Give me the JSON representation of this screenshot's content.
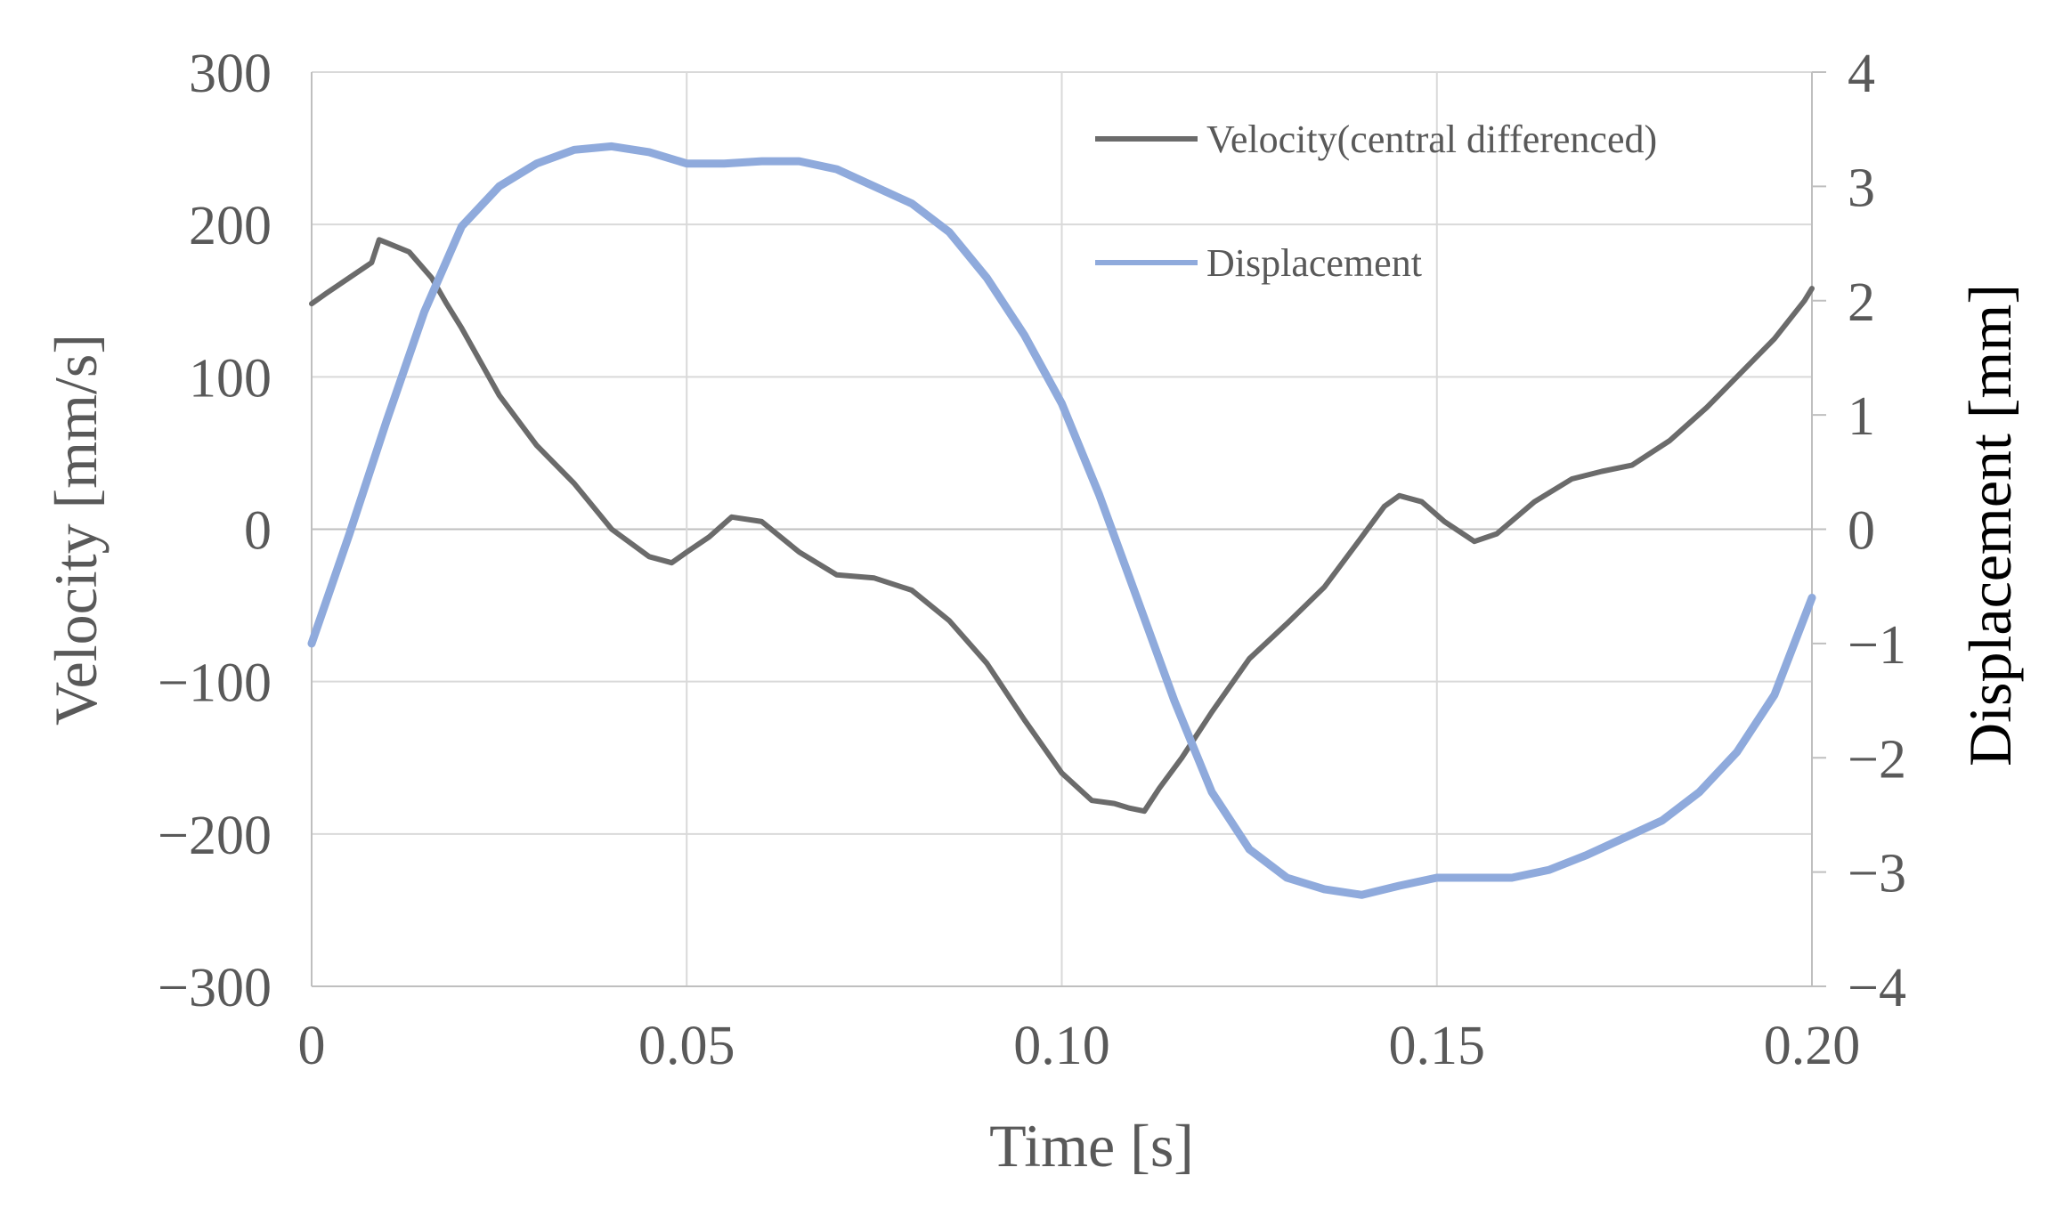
{
  "chart_data": {
    "type": "line",
    "xlabel": "Time [s]",
    "ylabel_left": "Velocity [mm/s]",
    "ylabel_right": "Displacement [mm]",
    "xlim": [
      0,
      0.2
    ],
    "ylim_left": [
      -300,
      300
    ],
    "ylim_right": [
      -4,
      4
    ],
    "x_ticks": [
      0,
      0.05,
      0.1,
      0.15,
      0.2
    ],
    "x_tick_labels": [
      "0",
      "0.05",
      "0.10",
      "0.15",
      "0.20"
    ],
    "y_left_ticks": [
      300,
      200,
      100,
      0,
      -100,
      -200,
      -300
    ],
    "y_left_tick_labels": [
      "300",
      "200",
      "100",
      "0",
      "−100",
      "−200",
      "−300"
    ],
    "y_right_ticks": [
      4,
      3,
      2,
      1,
      0,
      -1,
      -2,
      -3,
      -4
    ],
    "y_right_tick_labels": [
      "4",
      "3",
      "2",
      "1",
      "0",
      "−1",
      "−2",
      "−3",
      "−4"
    ],
    "grid": true,
    "legend_position": "top-right",
    "series": [
      {
        "name": "Velocity(central differenced)",
        "axis": "left",
        "color": "#6b6b6b",
        "x": [
          0,
          0.002,
          0.005,
          0.008,
          0.009,
          0.01,
          0.013,
          0.016,
          0.018,
          0.02,
          0.025,
          0.03,
          0.035,
          0.04,
          0.045,
          0.048,
          0.05,
          0.053,
          0.056,
          0.06,
          0.065,
          0.07,
          0.075,
          0.08,
          0.085,
          0.09,
          0.095,
          0.1,
          0.104,
          0.107,
          0.109,
          0.111,
          0.113,
          0.116,
          0.12,
          0.125,
          0.13,
          0.135,
          0.14,
          0.143,
          0.145,
          0.148,
          0.151,
          0.155,
          0.158,
          0.163,
          0.168,
          0.172,
          0.176,
          0.181,
          0.186,
          0.19,
          0.195,
          0.199,
          0.2
        ],
        "y": [
          148,
          155,
          165,
          175,
          190,
          188,
          182,
          165,
          148,
          132,
          88,
          55,
          30,
          0,
          -18,
          -22,
          -15,
          -5,
          8,
          5,
          -15,
          -30,
          -32,
          -40,
          -60,
          -88,
          -125,
          -160,
          -178,
          -180,
          -183,
          -185,
          -170,
          -150,
          -120,
          -85,
          -62,
          -38,
          -5,
          15,
          22,
          18,
          5,
          -8,
          -3,
          18,
          33,
          38,
          42,
          58,
          80,
          100,
          125,
          150,
          158
        ]
      },
      {
        "name": "Displacement",
        "axis": "right",
        "color": "#8faadc",
        "x": [
          0,
          0.005,
          0.01,
          0.015,
          0.02,
          0.025,
          0.03,
          0.035,
          0.04,
          0.045,
          0.05,
          0.055,
          0.06,
          0.065,
          0.07,
          0.075,
          0.08,
          0.085,
          0.09,
          0.095,
          0.1,
          0.105,
          0.11,
          0.115,
          0.12,
          0.125,
          0.13,
          0.135,
          0.14,
          0.145,
          0.15,
          0.155,
          0.16,
          0.165,
          0.17,
          0.175,
          0.18,
          0.185,
          0.19,
          0.195,
          0.2
        ],
        "y": [
          -1.0,
          -0.05,
          0.95,
          1.9,
          2.65,
          3.0,
          3.2,
          3.32,
          3.35,
          3.3,
          3.2,
          3.2,
          3.22,
          3.22,
          3.15,
          3.0,
          2.85,
          2.6,
          2.2,
          1.7,
          1.1,
          0.3,
          -0.6,
          -1.5,
          -2.3,
          -2.8,
          -3.05,
          -3.15,
          -3.2,
          -3.12,
          -3.05,
          -3.05,
          -3.05,
          -2.98,
          -2.85,
          -2.7,
          -2.55,
          -2.3,
          -1.95,
          -1.45,
          -0.6
        ]
      }
    ]
  }
}
